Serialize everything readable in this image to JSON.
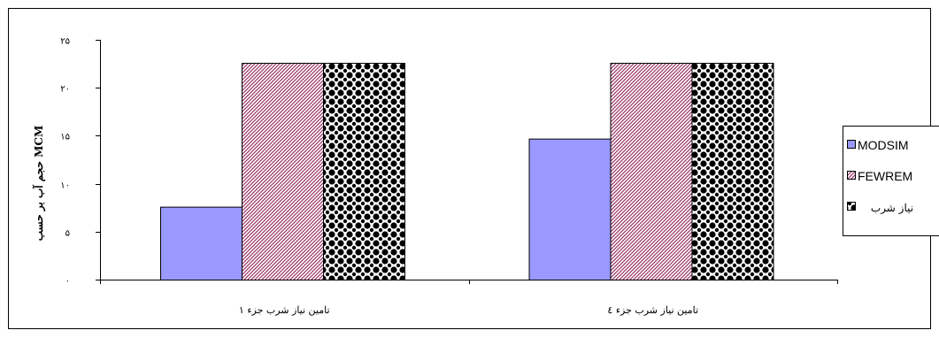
{
  "chart_data": {
    "type": "bar",
    "categories": [
      "تامین نیاز شرب جزء ۱",
      "تامین نیاز شرب جزء ٤"
    ],
    "series": [
      {
        "name": "MODSIM",
        "values": [
          7.6,
          14.7
        ],
        "color": "#9999ff",
        "pattern": "solid"
      },
      {
        "name": "FEWREM",
        "values": [
          22.6,
          22.6
        ],
        "color": "#993366",
        "pattern": "diagonal-hatch"
      },
      {
        "name": "نیاز شرب",
        "values": [
          22.6,
          22.6
        ],
        "color": "#000000",
        "pattern": "diamond-checker"
      }
    ],
    "ylabel": "حجم آب بر حسب MCM",
    "xlabel": "",
    "ylim": [
      0,
      25
    ],
    "yticks": [
      "۰",
      "۵",
      "۱۰",
      "۱۵",
      "۲۰",
      "۲۵"
    ],
    "ytick_values": [
      0,
      5,
      10,
      15,
      20,
      25
    ],
    "grid": false,
    "legend": "right"
  }
}
